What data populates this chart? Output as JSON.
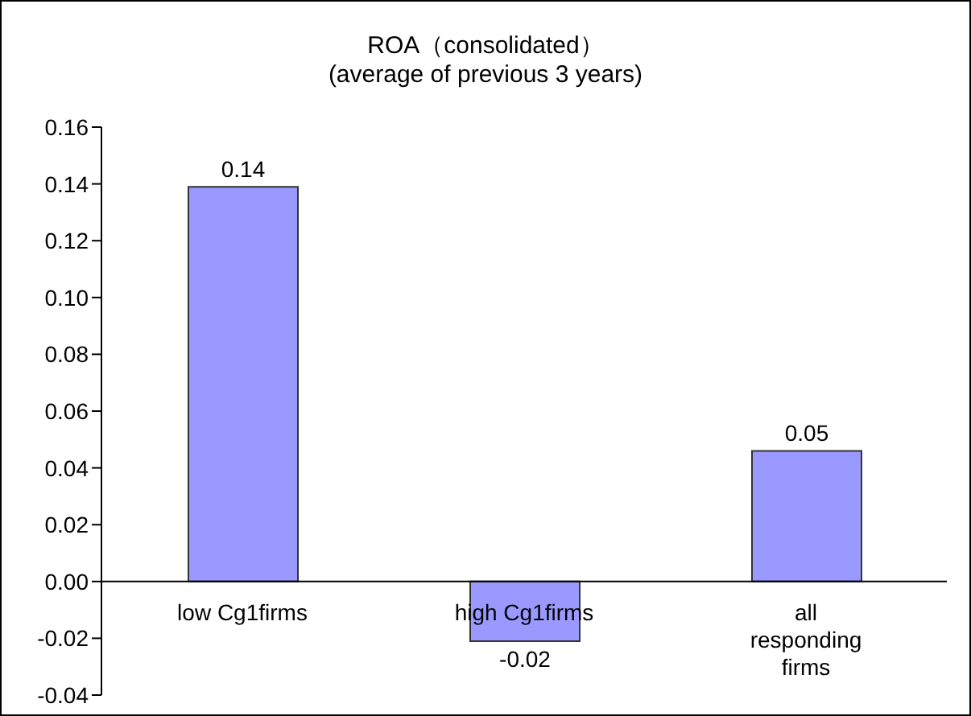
{
  "chart_data": {
    "type": "bar",
    "title": "ROA（consolidated）",
    "subtitle": "(average of previous 3 years)",
    "categories": [
      "low Cg1firms",
      "high Cg1firms",
      "all responding firms"
    ],
    "values": [
      0.139,
      -0.021,
      0.046
    ],
    "value_labels": [
      "0.14",
      "-0.02",
      "0.05"
    ],
    "color": "#9999ff",
    "ylim": [
      -0.04,
      0.16
    ],
    "yticks": [
      {
        "value": -0.04,
        "label": "-0.04"
      },
      {
        "value": -0.02,
        "label": "-0.02"
      },
      {
        "value": 0,
        "label": "0.00"
      },
      {
        "value": 0.02,
        "label": "0.02"
      },
      {
        "value": 0.04,
        "label": "0.04"
      },
      {
        "value": 0.06,
        "label": "0.06"
      },
      {
        "value": 0.08,
        "label": "0.08"
      },
      {
        "value": 0.1,
        "label": "0.10"
      },
      {
        "value": 0.12,
        "label": "0.12"
      },
      {
        "value": 0.14,
        "label": "0.14"
      },
      {
        "value": 0.16,
        "label": "0.16"
      }
    ],
    "grid": false,
    "legend": false
  }
}
